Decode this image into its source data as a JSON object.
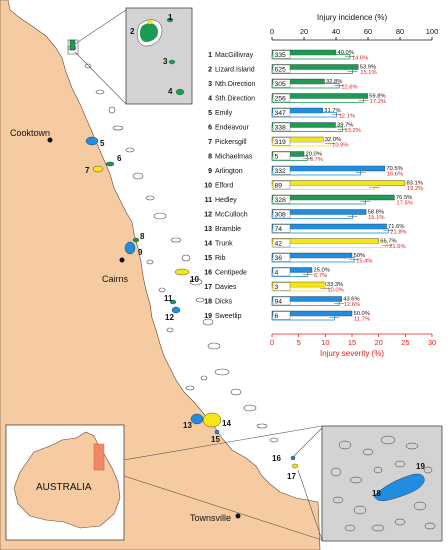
{
  "map": {
    "place_labels": {
      "cooktown": "Cooktown",
      "cairns": "Cairns",
      "townsville": "Townsville",
      "australia": "AUSTRALIA"
    },
    "reef_numbers": [
      "1",
      "2",
      "3",
      "4",
      "5",
      "6",
      "7",
      "8",
      "9",
      "10",
      "11",
      "12",
      "13",
      "14",
      "15",
      "16",
      "17",
      "18",
      "19"
    ],
    "colors": {
      "land": "#F6CBA2",
      "sea": "#ffffff",
      "inset_bg": "#d3d3d3",
      "reef_green": "#1f9a55",
      "reef_blue": "#1f8de0",
      "reef_yellow": "#f5e61a",
      "highlight_box": "#f08060"
    }
  },
  "chart_data": {
    "type": "bar",
    "title": "",
    "top_axis": {
      "label": "Injury incidence (%)",
      "range": [
        0,
        100
      ],
      "ticks": [
        "0",
        "20",
        "40",
        "60",
        "80",
        "100"
      ]
    },
    "bottom_axis": {
      "label": "Injury severity (%)",
      "range": [
        0,
        30
      ],
      "ticks": [
        "0",
        "5",
        "10",
        "15",
        "20",
        "25",
        "30"
      ]
    },
    "grid": false,
    "colors": {
      "green": "#1f9a55",
      "blue": "#1f8de0",
      "yellow": "#f5e61a",
      "severity_text": "#e0201c",
      "severity_axis": "#e0201c"
    },
    "sites": [
      {
        "num": "1",
        "name": "MacGillivray",
        "color": "green",
        "n": "335",
        "incidence": 40.0,
        "incidence_label": "40.0%",
        "severity": 14.6,
        "severity_label": "14.6%"
      },
      {
        "num": "2",
        "name": "Lizard.Island",
        "color": "green",
        "n": "625",
        "incidence": 53.9,
        "incidence_label": "53.9%",
        "severity": 15.1,
        "severity_label": "15.1%"
      },
      {
        "num": "3",
        "name": "Nth.Direction",
        "color": "green",
        "n": "305",
        "incidence": 32.8,
        "incidence_label": "32.8%",
        "severity": 12.6,
        "severity_label": "12.6%"
      },
      {
        "num": "4",
        "name": "Sth.Direction",
        "color": "green",
        "n": "256",
        "incidence": 59.8,
        "incidence_label": "59.8%",
        "severity": 17.2,
        "severity_label": "17.2%"
      },
      {
        "num": "5",
        "name": "Emily",
        "color": "blue",
        "n": "347",
        "incidence": 31.7,
        "incidence_label": "31.7%",
        "severity": 12.1,
        "severity_label": "12.1%"
      },
      {
        "num": "6",
        "name": "Endeavour",
        "color": "green",
        "n": "338",
        "incidence": 39.7,
        "incidence_label": "39.7%",
        "severity": 13.2,
        "severity_label": "13.2%"
      },
      {
        "num": "7",
        "name": "Pickersgill",
        "color": "yellow",
        "n": "319",
        "incidence": 32.0,
        "incidence_label": "32.0%",
        "severity": 10.9,
        "severity_label": "10.9%"
      },
      {
        "num": "8",
        "name": "Michaelmas",
        "color": "green",
        "n": "5",
        "incidence": 20.0,
        "incidence_label": "20.0%",
        "severity": 6.7,
        "severity_label": "6.7%"
      },
      {
        "num": "9",
        "name": "Arlington",
        "color": "blue",
        "n": "332",
        "incidence": 70.5,
        "incidence_label": "70.5%",
        "severity": 16.6,
        "severity_label": "16.6%"
      },
      {
        "num": "10",
        "name": "Elford",
        "color": "yellow",
        "n": "89",
        "incidence": 83.1,
        "incidence_label": "83.1%",
        "severity": 19.2,
        "severity_label": "19.2%"
      },
      {
        "num": "11",
        "name": "Hedley",
        "color": "green",
        "n": "328",
        "incidence": 76.5,
        "incidence_label": "76.5%",
        "severity": 17.5,
        "severity_label": "17.5%"
      },
      {
        "num": "12",
        "name": "McCulloch",
        "color": "blue",
        "n": "308",
        "incidence": 58.8,
        "incidence_label": "58.8%",
        "severity": 15.1,
        "severity_label": "15.1%"
      },
      {
        "num": "13",
        "name": "Bramble",
        "color": "blue",
        "n": "74",
        "incidence": 71.6,
        "incidence_label": "71.6%",
        "severity": 21.8,
        "severity_label": "21.8%"
      },
      {
        "num": "14",
        "name": "Trunk",
        "color": "yellow",
        "n": "42",
        "incidence": 66.7,
        "incidence_label": "66.7%",
        "severity": 21.6,
        "severity_label": "21.6%"
      },
      {
        "num": "15",
        "name": "Rib",
        "color": "blue",
        "n": "36",
        "incidence": 50.0,
        "incidence_label": "50%",
        "severity": 15.4,
        "severity_label": "15.4%"
      },
      {
        "num": "16",
        "name": "Centipede",
        "color": "blue",
        "n": "4",
        "incidence": 25.0,
        "incidence_label": "25.0%",
        "severity": 6.7,
        "severity_label": "6.7%"
      },
      {
        "num": "17",
        "name": "Davies",
        "color": "yellow",
        "n": "3",
        "incidence": 33.3,
        "incidence_label": "33.3%",
        "severity": 10.0,
        "severity_label": "10.0%"
      },
      {
        "num": "18",
        "name": "Dicks",
        "color": "blue",
        "n": "94",
        "incidence": 43.6,
        "incidence_label": "43.6%",
        "severity": 12.6,
        "severity_label": "12.6%"
      },
      {
        "num": "19",
        "name": "Sweetlip",
        "color": "blue",
        "n": "6",
        "incidence": 50.0,
        "incidence_label": "50.0%",
        "severity": 11.7,
        "severity_label": "11.7%"
      }
    ]
  }
}
